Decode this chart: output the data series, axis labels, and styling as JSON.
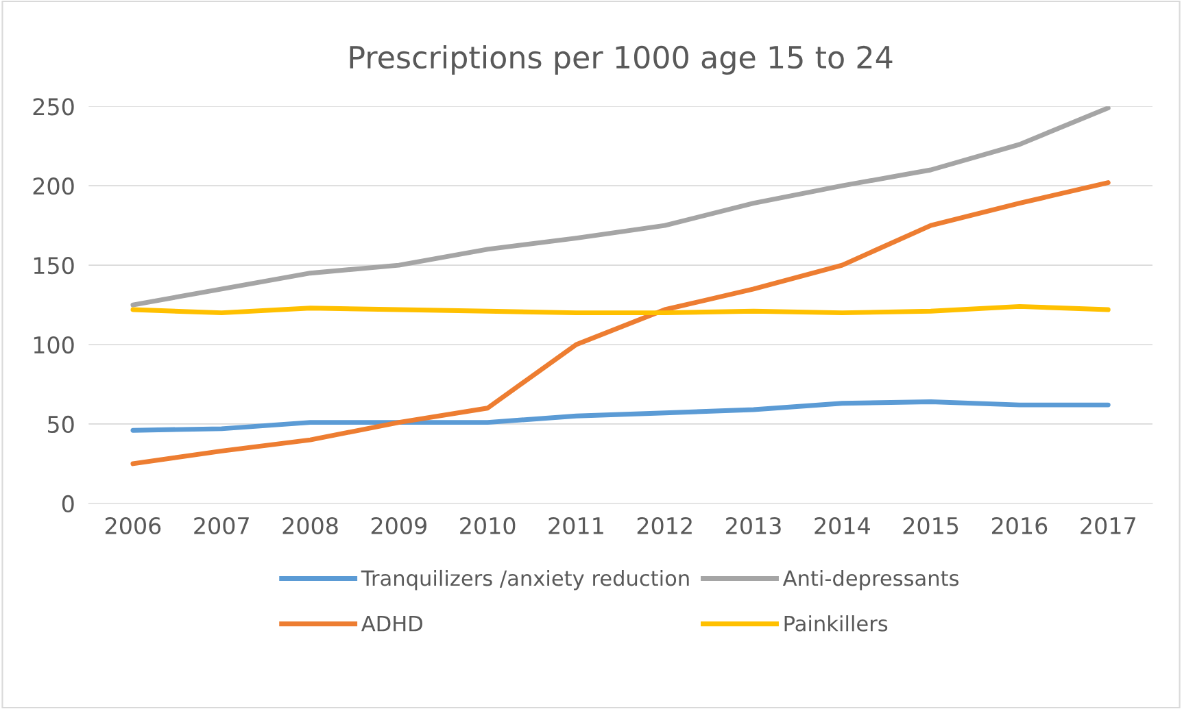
{
  "chart_data": {
    "type": "line",
    "title": "Prescriptions per 1000 age 15 to 24",
    "categories": [
      "2006",
      "2007",
      "2008",
      "2009",
      "2010",
      "2011",
      "2012",
      "2013",
      "2014",
      "2015",
      "2016",
      "2017"
    ],
    "series": [
      {
        "name": "Tranquilizers /anxiety reduction",
        "color": "#5b9bd5",
        "values": [
          46,
          47,
          51,
          51,
          51,
          55,
          57,
          59,
          63,
          64,
          62,
          62
        ]
      },
      {
        "name": "ADHD",
        "color": "#ed7d31",
        "values": [
          25,
          33,
          40,
          51,
          60,
          100,
          122,
          135,
          150,
          175,
          189,
          202
        ]
      },
      {
        "name": "Anti-depressants",
        "color": "#a5a5a5",
        "values": [
          125,
          135,
          145,
          150,
          160,
          167,
          175,
          189,
          200,
          210,
          226,
          249
        ]
      },
      {
        "name": "Painkillers",
        "color": "#ffc000",
        "values": [
          122,
          120,
          123,
          122,
          121,
          120,
          120,
          121,
          120,
          121,
          124,
          122
        ]
      }
    ],
    "ylim": [
      0,
      250
    ],
    "yticks": [
      0,
      50,
      100,
      150,
      200,
      250
    ],
    "grid": "y",
    "legend": "bottom",
    "marker": "none",
    "line_style": "solid"
  }
}
